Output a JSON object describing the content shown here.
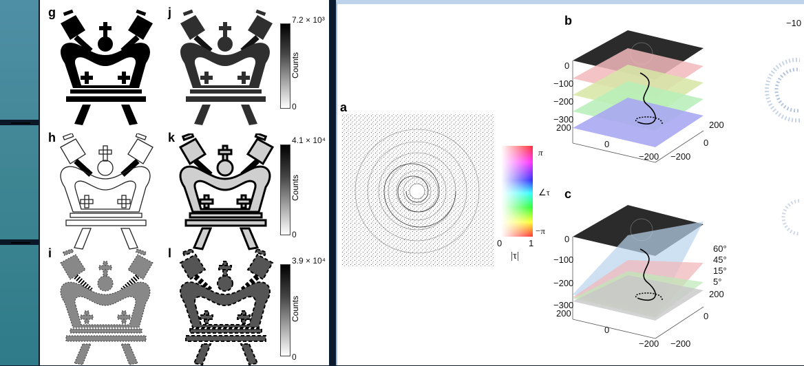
{
  "left_figure": {
    "panels": [
      "g",
      "j",
      "h",
      "k",
      "i",
      "l"
    ],
    "colorbars": [
      {
        "max_label": "7.2 × 10³",
        "min_label": "0",
        "axis_label": "Counts"
      },
      {
        "max_label": "4.1 × 10⁴",
        "min_label": "0",
        "axis_label": "Counts"
      },
      {
        "max_label": "3.9 × 10⁴",
        "min_label": "0",
        "axis_label": "Counts"
      }
    ]
  },
  "right_figure": {
    "panel_a": "a",
    "panel_b": "b",
    "panel_c": "c",
    "phase_bar": {
      "top": "π",
      "angle": "∠τ",
      "bottom": "−π",
      "x_min": "0",
      "x_max": "1",
      "x_label": "|τ|"
    },
    "plot_b": {
      "z_ticks": [
        "0",
        "−100",
        "−200",
        "−300"
      ],
      "x_ticks": [
        "200",
        "0",
        "−200"
      ],
      "y_ticks": [
        "200",
        "0",
        "−200"
      ]
    },
    "plot_c": {
      "z_ticks": [
        "0",
        "−100",
        "−200",
        "−300"
      ],
      "x_ticks": [
        "200",
        "0",
        "−200"
      ],
      "y_ticks": [
        "200",
        "0",
        "−200"
      ],
      "angles": [
        "60°",
        "45°",
        "15°",
        "5°"
      ]
    },
    "partial_label": "−10"
  }
}
